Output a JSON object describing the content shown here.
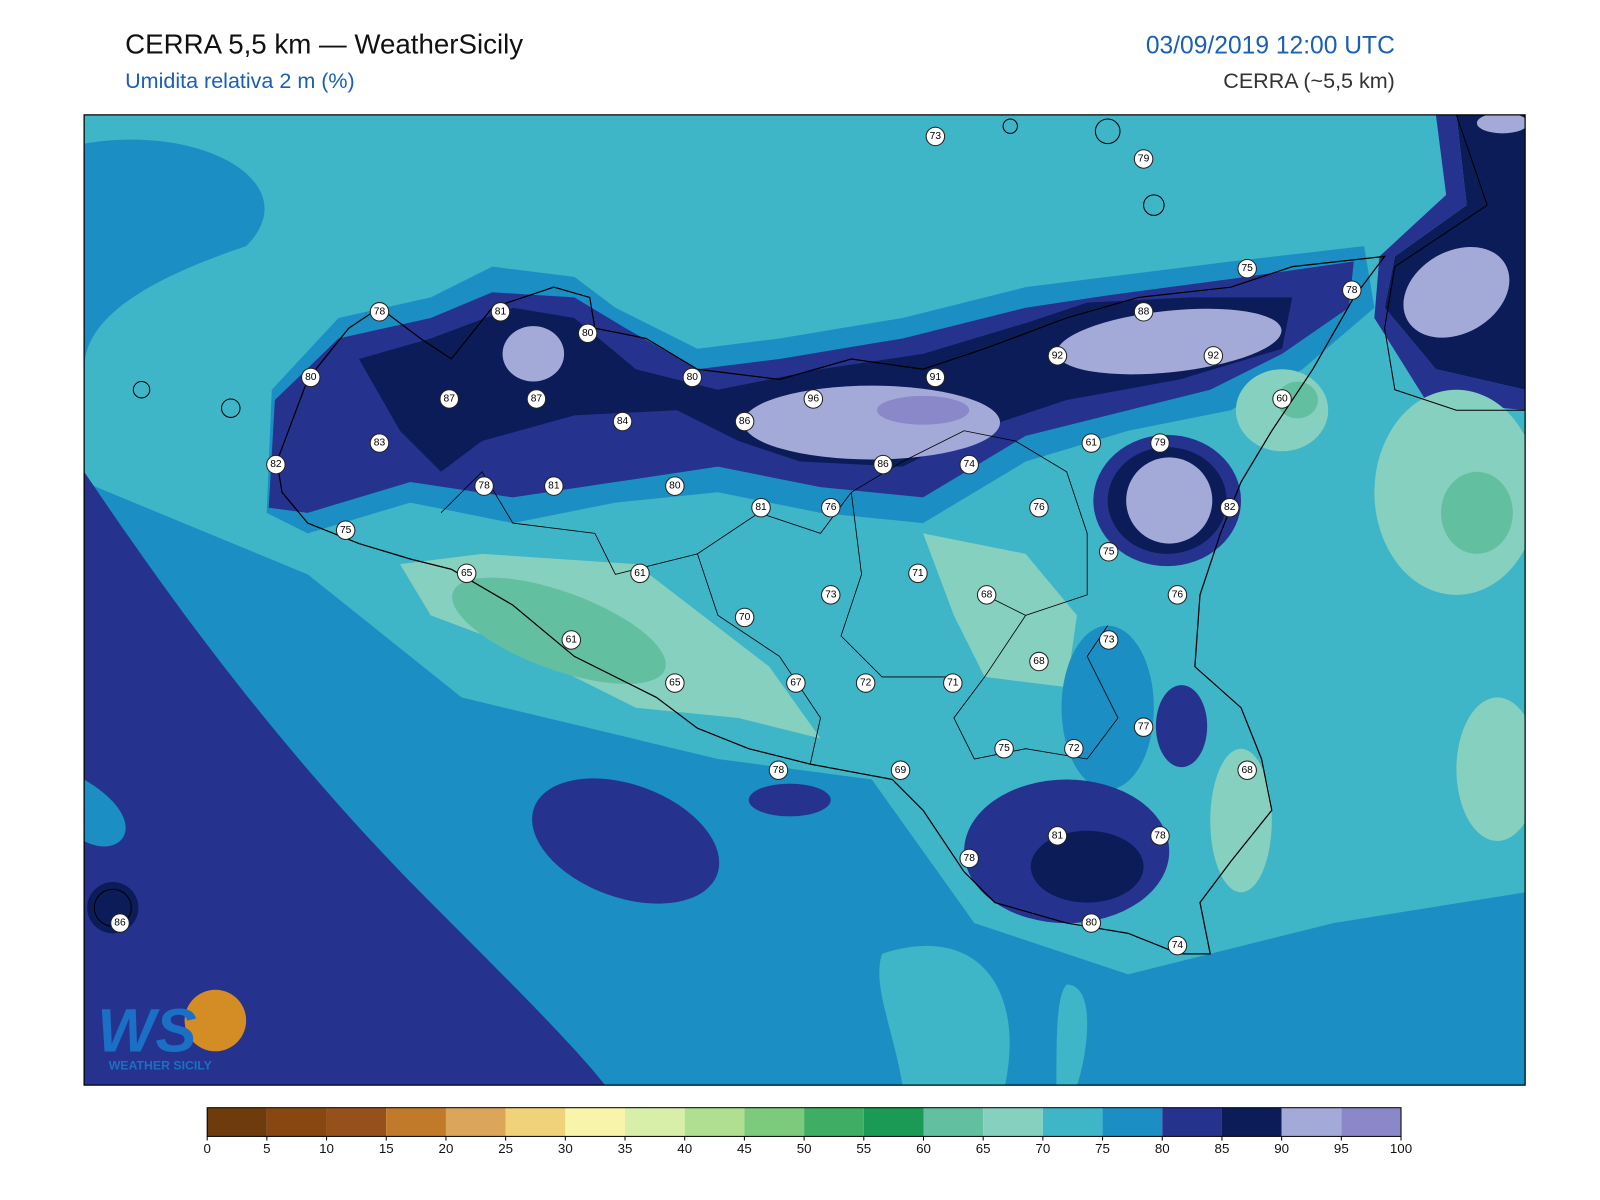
{
  "header": {
    "title": "CERRA 5,5 km — WeatherSicily",
    "subtitle": "Umidita relativa 2 m (%)",
    "datetime": "03/09/2019 12:00 UTC",
    "model": "CERRA (~5,5 km)"
  },
  "stations": [
    73,
    79,
    75,
    78,
    78,
    81,
    80,
    88,
    92,
    92,
    80,
    87,
    87,
    80,
    91,
    96,
    60,
    84,
    86,
    83,
    61,
    79,
    82,
    86,
    74,
    78,
    81,
    80,
    81,
    76,
    76,
    82,
    75,
    75,
    65,
    61,
    71,
    73,
    68,
    76,
    70,
    61,
    73,
    68,
    65,
    67,
    72,
    71,
    77,
    75,
    72,
    78,
    69,
    68,
    81,
    78,
    78,
    80,
    86,
    74
  ],
  "colorbar": {
    "ticks": [
      0,
      5,
      10,
      15,
      20,
      25,
      30,
      35,
      40,
      45,
      50,
      55,
      60,
      65,
      70,
      75,
      80,
      85,
      90,
      95,
      100
    ],
    "colors": [
      "#6e3c0c",
      "#884610",
      "#96501a",
      "#c07a2a",
      "#dba55a",
      "#f0d27a",
      "#f8f5aa",
      "#d8efaa",
      "#aee08f",
      "#7ccb7c",
      "#3fae62",
      "#1a9a55",
      "#62c0a0",
      "#86d0c0",
      "#3fb5c8",
      "#1b8fc4",
      "#25338f",
      "#0c1c58",
      "#a3aad8",
      "#8a88c8"
    ]
  },
  "logo": {
    "mark": "WS",
    "text": "WEATHER SICILY"
  }
}
